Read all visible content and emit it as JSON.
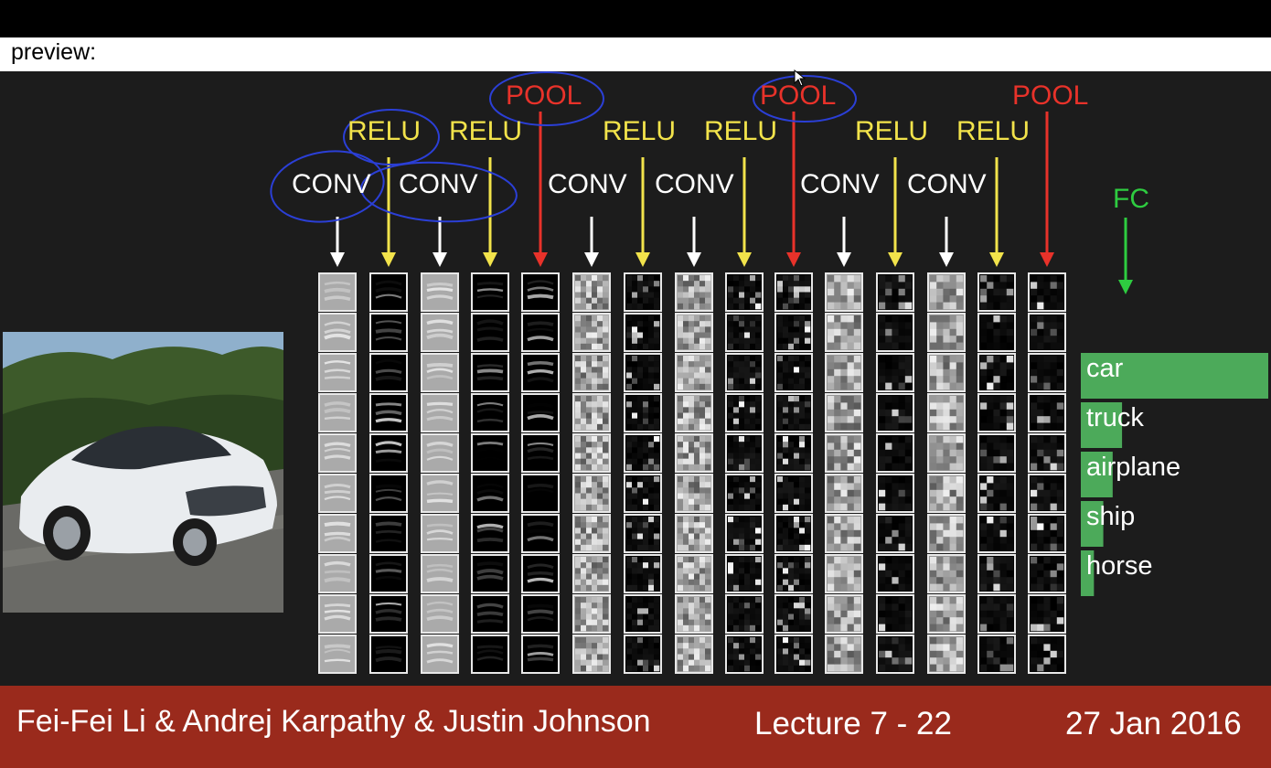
{
  "preview_label": "preview:",
  "slide": {
    "operations": [
      {
        "label": "CONV",
        "kind": "conv"
      },
      {
        "label": "RELU",
        "kind": "relu"
      },
      {
        "label": "CONV",
        "kind": "conv"
      },
      {
        "label": "RELU",
        "kind": "relu"
      },
      {
        "label": "POOL",
        "kind": "pool"
      },
      {
        "label": "CONV",
        "kind": "conv"
      },
      {
        "label": "RELU",
        "kind": "relu"
      },
      {
        "label": "CONV",
        "kind": "conv"
      },
      {
        "label": "RELU",
        "kind": "relu"
      },
      {
        "label": "POOL",
        "kind": "pool"
      },
      {
        "label": "CONV",
        "kind": "conv"
      },
      {
        "label": "RELU",
        "kind": "relu"
      },
      {
        "label": "CONV",
        "kind": "conv"
      },
      {
        "label": "RELU",
        "kind": "relu"
      },
      {
        "label": "POOL",
        "kind": "pool"
      }
    ],
    "fc_label": "FC",
    "classes": [
      {
        "label": "car",
        "score": 1.0
      },
      {
        "label": "truck",
        "score": 0.22
      },
      {
        "label": "airplane",
        "score": 0.17
      },
      {
        "label": "ship",
        "score": 0.12
      },
      {
        "label": "horse",
        "score": 0.07
      }
    ],
    "colors": {
      "conv": "#ffffff",
      "relu": "#f2e34b",
      "pool": "#e8322a",
      "fc": "#2ecc40",
      "bar": "#4caa5a",
      "annotation": "#2b3fd6"
    }
  },
  "footer": {
    "authors": "Fei-Fei Li & Andrej Karpathy & Justin Johnson",
    "lecture": "Lecture 7 - 22",
    "date": "27 Jan 2016"
  }
}
